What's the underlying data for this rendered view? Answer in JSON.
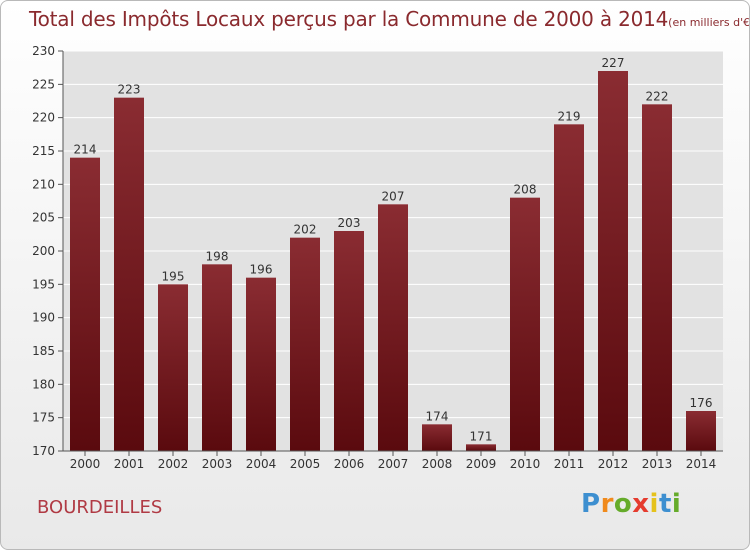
{
  "header": {
    "title": "Total des Impôts Locaux perçus par la Commune de 2000 à 2014",
    "unit": "(en milliers d'€)"
  },
  "footer": {
    "commune": "BOURDEILLES",
    "brand": [
      "P",
      "r",
      "o",
      "x",
      "i",
      "t",
      "i"
    ],
    "brand_colors": [
      "#3d8fd0",
      "#f08a1c",
      "#65ab2a",
      "#e53b2e",
      "#e5c21c",
      "#3d8fd0",
      "#65ab2a"
    ]
  },
  "colors": {
    "bar_dark": "#5a0a0e",
    "bar_light": "#8a2c32",
    "grid": "#ffffff",
    "axis_text": "#333333"
  },
  "chart_data": {
    "type": "bar",
    "title": "Total des Impôts Locaux perçus par la Commune de 2000 à 2014",
    "xlabel": "",
    "ylabel": "",
    "categories": [
      "2000",
      "2001",
      "2002",
      "2003",
      "2004",
      "2005",
      "2006",
      "2007",
      "2008",
      "2009",
      "2010",
      "2011",
      "2012",
      "2013",
      "2014"
    ],
    "values": [
      214,
      223,
      195,
      198,
      196,
      202,
      203,
      207,
      174,
      171,
      208,
      219,
      227,
      222,
      176
    ],
    "ylim": [
      170,
      230
    ],
    "yticks": [
      170,
      175,
      180,
      185,
      190,
      195,
      200,
      205,
      210,
      215,
      220,
      225,
      230
    ],
    "grid": true
  }
}
